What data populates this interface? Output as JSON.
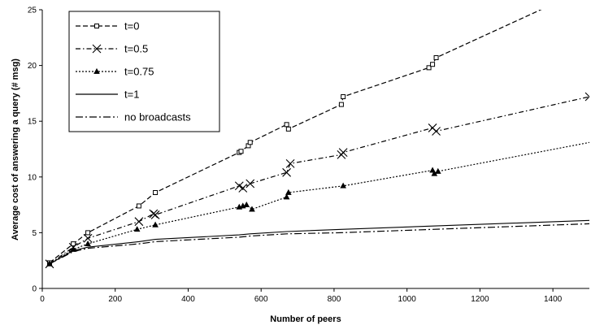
{
  "chart_data": {
    "type": "line",
    "title": "",
    "xlabel": "Number of peers",
    "ylabel": "Average cost of answering a query (# msg)",
    "xlim": [
      0,
      1500
    ],
    "ylim": [
      0,
      25
    ],
    "xticks": [
      0,
      200,
      400,
      600,
      800,
      1000,
      1200,
      1400
    ],
    "yticks": [
      0,
      5,
      10,
      15,
      20,
      25
    ],
    "grid": false,
    "legend": "top-left",
    "series": [
      {
        "name": "t=0",
        "style": "dashed",
        "marker": "open-square",
        "color": "#000000",
        "x": [
          20,
          85,
          125,
          265,
          310,
          540,
          545,
          565,
          570,
          670,
          675,
          820,
          825,
          1060,
          1070,
          1080,
          1400
        ],
        "y": [
          2.3,
          4.0,
          5.0,
          7.4,
          8.6,
          12.2,
          12.3,
          12.8,
          13.1,
          14.7,
          14.3,
          16.5,
          17.2,
          19.8,
          20.1,
          20.7,
          25.5
        ],
        "markers_at": [
          20,
          85,
          125,
          265,
          310,
          540,
          545,
          565,
          570,
          670,
          675,
          820,
          825,
          1060,
          1070,
          1080
        ]
      },
      {
        "name": "t=0.5",
        "style": "dash-dot",
        "marker": "x",
        "color": "#000000",
        "x": [
          20,
          85,
          125,
          265,
          305,
          310,
          540,
          550,
          570,
          670,
          680,
          820,
          825,
          1070,
          1080,
          1500
        ],
        "y": [
          2.2,
          3.7,
          4.5,
          6.0,
          6.7,
          6.6,
          9.2,
          9.0,
          9.4,
          10.4,
          11.2,
          12.0,
          12.2,
          14.4,
          14.1,
          17.2
        ],
        "markers_at": [
          20,
          85,
          125,
          265,
          305,
          310,
          540,
          550,
          570,
          670,
          680,
          820,
          825,
          1070,
          1080,
          1500
        ]
      },
      {
        "name": "t=0.75",
        "style": "dotted",
        "marker": "filled-triangle",
        "color": "#000000",
        "x": [
          20,
          85,
          125,
          260,
          310,
          540,
          550,
          560,
          575,
          670,
          675,
          825,
          1070,
          1075,
          1085,
          1500
        ],
        "y": [
          2.2,
          3.5,
          4.0,
          5.3,
          5.7,
          7.3,
          7.4,
          7.5,
          7.1,
          8.2,
          8.6,
          9.2,
          10.6,
          10.3,
          10.5,
          13.1
        ],
        "markers_at": [
          20,
          85,
          125,
          260,
          310,
          540,
          550,
          560,
          575,
          670,
          675,
          825,
          1070,
          1075,
          1085
        ]
      },
      {
        "name": "t=1",
        "style": "solid",
        "marker": "none",
        "color": "#000000",
        "x": [
          20,
          85,
          125,
          265,
          310,
          540,
          570,
          670,
          820,
          1070,
          1500
        ],
        "y": [
          2.2,
          3.4,
          3.7,
          4.2,
          4.4,
          4.8,
          4.9,
          5.1,
          5.3,
          5.6,
          6.1
        ]
      },
      {
        "name": "no broadcasts",
        "style": "long-dash-dot",
        "marker": "none",
        "color": "#000000",
        "x": [
          20,
          85,
          125,
          265,
          310,
          540,
          570,
          670,
          820,
          1070,
          1500
        ],
        "y": [
          2.2,
          3.3,
          3.6,
          4.0,
          4.2,
          4.6,
          4.7,
          4.9,
          5.0,
          5.3,
          5.8
        ]
      }
    ]
  }
}
